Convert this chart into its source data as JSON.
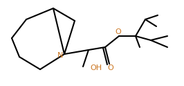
{
  "bg_color": "#ffffff",
  "bond_color": "#000000",
  "atom_colors": {
    "N": "#cc7722",
    "O": "#cc7722",
    "OH": "#cc7722"
  },
  "line_width": 1.5,
  "font_size": 8
}
